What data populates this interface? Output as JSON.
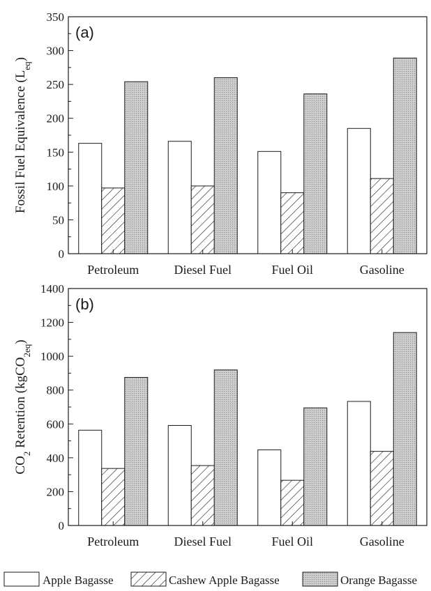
{
  "chart_data": [
    {
      "type": "bar",
      "panel_label": "(a)",
      "ylabel_main": "Fossil Fuel Equivalence (L",
      "ylabel_sub": "eq",
      "ylabel_tail": ")",
      "categories": [
        "Petroleum",
        "Diesel Fuel",
        "Fuel Oil",
        "Gasoline"
      ],
      "ylim": [
        0,
        350
      ],
      "yticks": [
        0,
        50,
        100,
        150,
        200,
        250,
        300,
        350
      ],
      "series": [
        {
          "name": "Apple Bagasse",
          "values": [
            163,
            166,
            151,
            185
          ]
        },
        {
          "name": "Cashew Apple Bagasse",
          "values": [
            97,
            100,
            90,
            111
          ]
        },
        {
          "name": "Orange Bagasse",
          "values": [
            254,
            260,
            236,
            289
          ]
        }
      ]
    },
    {
      "type": "bar",
      "panel_label": "(b)",
      "ylabel_main": "CO",
      "ylabel_sub": "2",
      "ylabel_mid": " Retention (kgCO",
      "ylabel_sub2": "2eq",
      "ylabel_tail": ")",
      "categories": [
        "Petroleum",
        "Diesel Fuel",
        "Fuel Oil",
        "Gasoline"
      ],
      "ylim": [
        0,
        1400
      ],
      "yticks": [
        0,
        200,
        400,
        600,
        800,
        1000,
        1200,
        1400
      ],
      "series": [
        {
          "name": "Apple Bagasse",
          "values": [
            563,
            591,
            447,
            733
          ]
        },
        {
          "name": "Cashew Apple Bagasse",
          "values": [
            337,
            354,
            267,
            438
          ]
        },
        {
          "name": "Orange Bagasse",
          "values": [
            875,
            919,
            695,
            1140
          ]
        }
      ]
    }
  ],
  "legend": [
    {
      "label": "Apple Bagasse",
      "pattern": "empty"
    },
    {
      "label": "Cashew Apple Bagasse",
      "pattern": "hatch"
    },
    {
      "label": "Orange Bagasse",
      "pattern": "dots"
    }
  ],
  "colors": {
    "axis": "#1a1a1a",
    "bar_edge": "#1a1a1a",
    "apple": "#ffffff",
    "orange": "#c8c8c8"
  }
}
